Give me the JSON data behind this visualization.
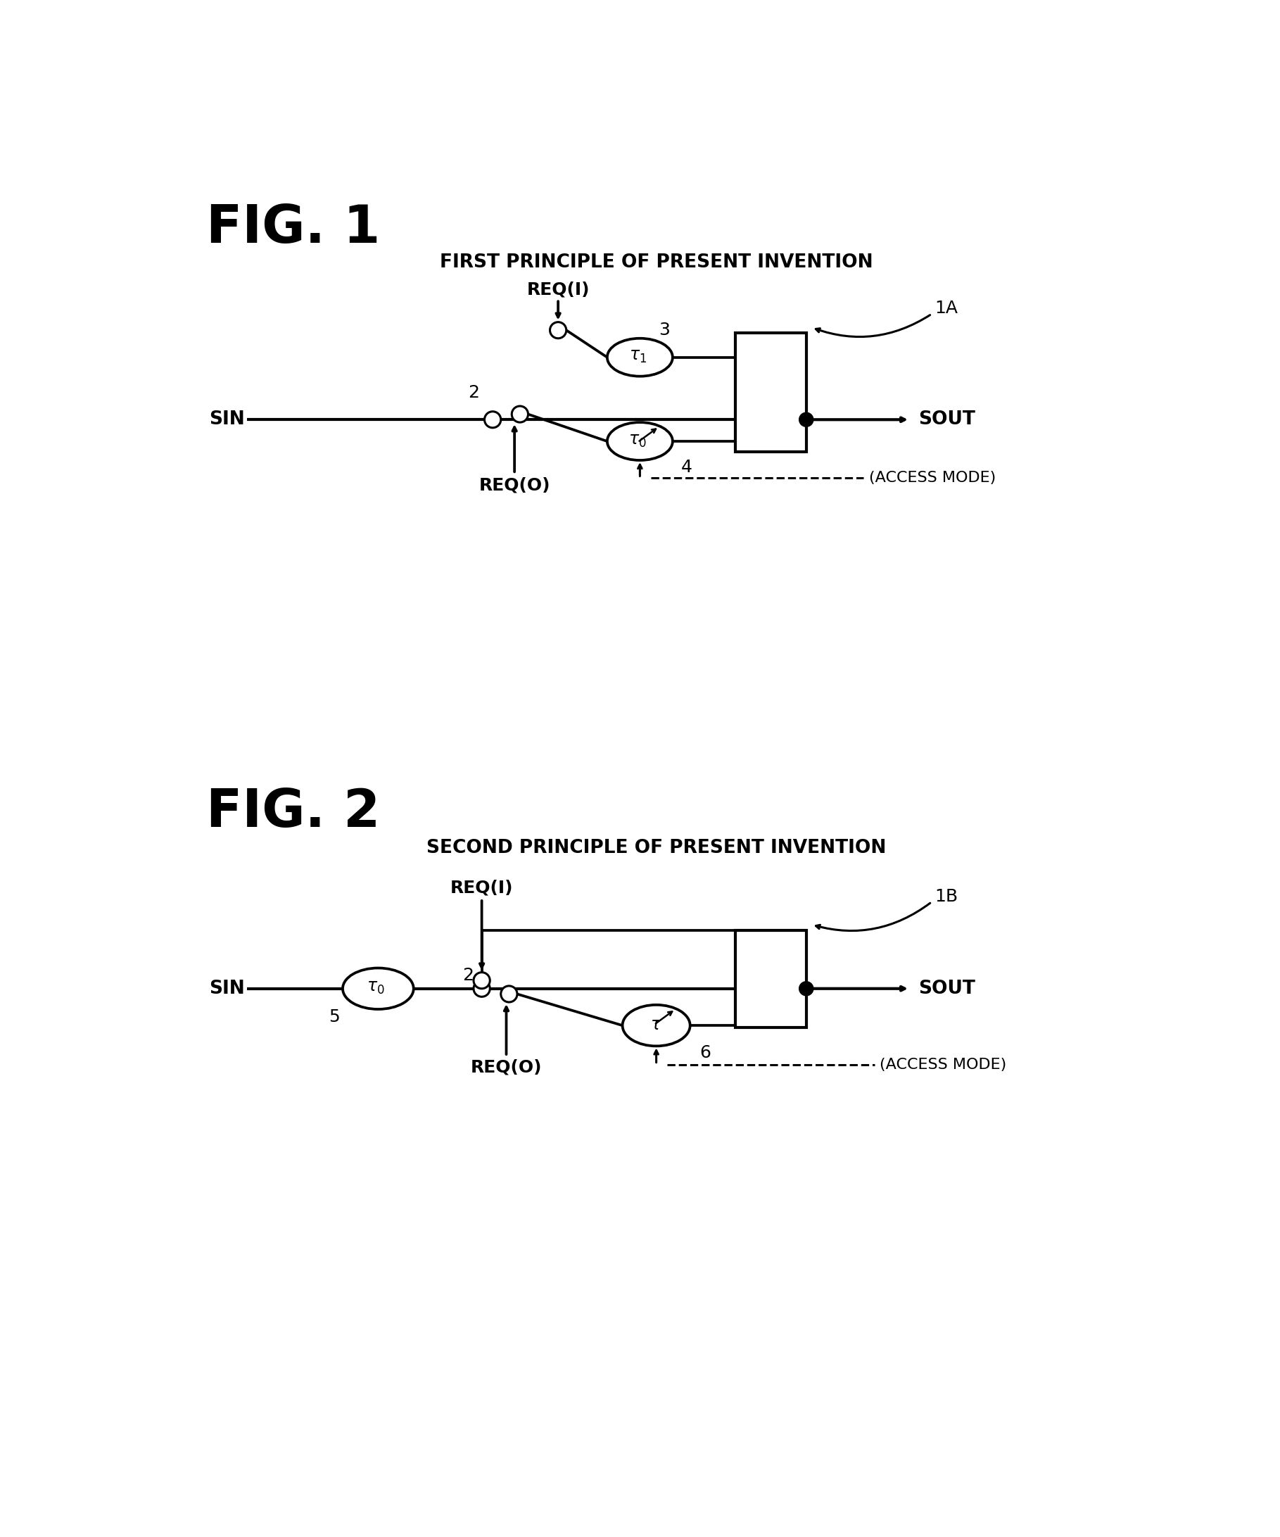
{
  "fig1_title": "FIG. 1",
  "fig1_subtitle": "FIRST PRINCIPLE OF PRESENT INVENTION",
  "fig2_title": "FIG. 2",
  "fig2_subtitle": "SECOND PRINCIPLE OF PRESENT INVENTION",
  "bg_color": "#ffffff",
  "lw": 2.2
}
